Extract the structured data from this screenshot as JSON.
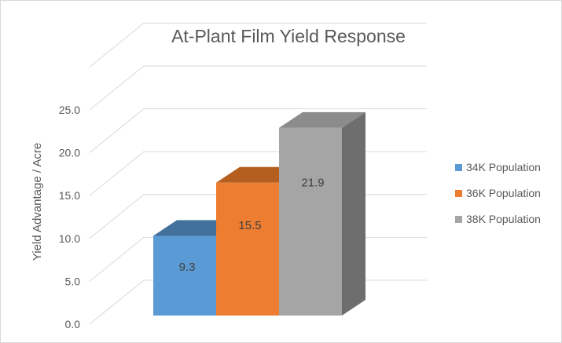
{
  "chart_data": {
    "type": "bar",
    "title": "At-Plant Film Yield Response",
    "ylabel": "Yield Advantage / Acre",
    "xlabel": "",
    "ylim": [
      0,
      25
    ],
    "yticks": [
      "0.0",
      "5.0",
      "10.0",
      "15.0",
      "20.0",
      "25.0"
    ],
    "series": [
      {
        "name": "34K Population",
        "value": 9.3,
        "label": "9.3",
        "color": "#5b9bd5",
        "top_color": "#41719c",
        "side_color": "#4a7fb0"
      },
      {
        "name": "36K Population",
        "value": 15.5,
        "label": "15.5",
        "color": "#ed7d31",
        "top_color": "#b45f1f",
        "side_color": "#c5631e"
      },
      {
        "name": "38K Population",
        "value": 21.9,
        "label": "21.9",
        "color": "#a5a5a5",
        "top_color": "#8c8c8c",
        "side_color": "#6e6e6e"
      }
    ],
    "legend_position": "right",
    "grid": true
  }
}
